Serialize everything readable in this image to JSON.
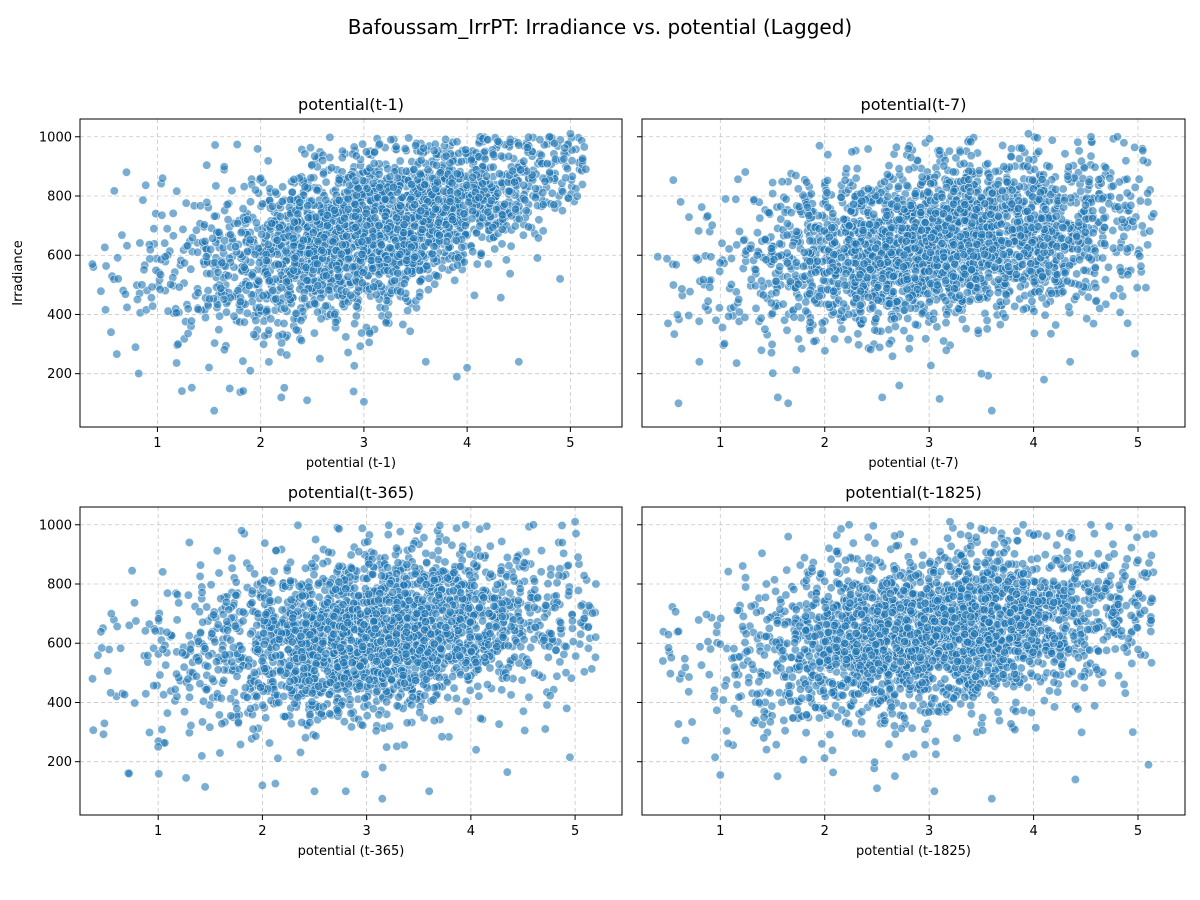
{
  "figure": {
    "suptitle": "Bafoussam_IrrPT: Irradiance vs. potential (Lagged)"
  },
  "colors": {
    "marker_fill": "#1f77b4",
    "marker_edge": "#ffffff",
    "grid": "#b0b0b0",
    "axes": "#000000"
  },
  "chart_data": [
    {
      "type": "scatter",
      "title": "potential(t-1)",
      "xlabel": "potential (t-1)",
      "ylabel": "Irradiance",
      "xlim": [
        0.25,
        5.5
      ],
      "ylim": [
        20,
        1060
      ],
      "xticks": [
        1,
        2,
        3,
        4,
        5
      ],
      "yticks": [
        200,
        400,
        600,
        800,
        1000
      ],
      "grid": true,
      "relationship": "positive",
      "x_range": [
        0.37,
        5.15
      ],
      "y_range": [
        75,
        1010
      ],
      "points": [
        [
          0.37,
          570
        ],
        [
          0.55,
          340
        ],
        [
          0.62,
          520
        ],
        [
          0.7,
          880
        ],
        [
          0.85,
          500
        ],
        [
          1.05,
          860
        ],
        [
          1.2,
          300
        ],
        [
          1.55,
          75
        ],
        [
          1.7,
          150
        ],
        [
          1.9,
          210
        ],
        [
          2.0,
          860
        ],
        [
          2.2,
          120
        ],
        [
          2.45,
          110
        ],
        [
          2.6,
          920
        ],
        [
          2.9,
          140
        ],
        [
          3.0,
          105
        ],
        [
          3.1,
          910
        ],
        [
          3.4,
          960
        ],
        [
          3.6,
          240
        ],
        [
          3.9,
          190
        ],
        [
          4.0,
          220
        ],
        [
          4.2,
          990
        ],
        [
          4.5,
          240
        ],
        [
          4.8,
          1000
        ],
        [
          4.9,
          520
        ],
        [
          5.0,
          1010
        ],
        [
          5.15,
          890
        ]
      ]
    },
    {
      "type": "scatter",
      "title": "potential(t-7)",
      "xlabel": "potential (t-7)",
      "ylabel": "",
      "xlim": [
        0.25,
        5.45
      ],
      "ylim": [
        20,
        1060
      ],
      "xticks": [
        1,
        2,
        3,
        4,
        5
      ],
      "yticks": [
        200,
        400,
        600,
        800,
        1000
      ],
      "grid": true,
      "relationship": "positive",
      "x_range": [
        0.4,
        5.15
      ],
      "y_range": [
        75,
        1010
      ],
      "points": [
        [
          0.4,
          595
        ],
        [
          0.6,
          100
        ],
        [
          0.62,
          780
        ],
        [
          0.8,
          240
        ],
        [
          1.05,
          790
        ],
        [
          1.55,
          120
        ],
        [
          1.65,
          100
        ],
        [
          1.95,
          970
        ],
        [
          2.3,
          860
        ],
        [
          2.55,
          120
        ],
        [
          2.8,
          960
        ],
        [
          3.1,
          115
        ],
        [
          3.5,
          200
        ],
        [
          3.6,
          75
        ],
        [
          3.95,
          1010
        ],
        [
          4.1,
          180
        ],
        [
          4.35,
          240
        ],
        [
          4.55,
          1000
        ],
        [
          4.9,
          370
        ],
        [
          5.05,
          920
        ],
        [
          5.15,
          740
        ]
      ]
    },
    {
      "type": "scatter",
      "title": "potential(t-365)",
      "xlabel": "potential (t-365)",
      "ylabel": "",
      "xlim": [
        0.25,
        5.45
      ],
      "ylim": [
        20,
        1060
      ],
      "xticks": [
        1,
        2,
        3,
        4,
        5
      ],
      "yticks": [
        200,
        400,
        600,
        800,
        1000
      ],
      "grid": true,
      "relationship": "positive",
      "x_range": [
        0.37,
        5.2
      ],
      "y_range": [
        75,
        1010
      ],
      "points": [
        [
          0.37,
          480
        ],
        [
          0.55,
          700
        ],
        [
          0.72,
          160
        ],
        [
          1.0,
          250
        ],
        [
          1.3,
          940
        ],
        [
          1.45,
          115
        ],
        [
          1.8,
          980
        ],
        [
          2.0,
          120
        ],
        [
          2.5,
          100
        ],
        [
          2.8,
          100
        ],
        [
          3.15,
          75
        ],
        [
          3.5,
          995
        ],
        [
          3.6,
          100
        ],
        [
          3.95,
          1000
        ],
        [
          4.05,
          240
        ],
        [
          4.35,
          165
        ],
        [
          4.6,
          1000
        ],
        [
          4.95,
          215
        ],
        [
          5.0,
          1010
        ],
        [
          5.2,
          800
        ]
      ]
    },
    {
      "type": "scatter",
      "title": "potential(t-1825)",
      "xlabel": "potential (t-1825)",
      "ylabel": "",
      "xlim": [
        0.25,
        5.45
      ],
      "ylim": [
        20,
        1060
      ],
      "xticks": [
        1,
        2,
        3,
        4,
        5
      ],
      "yticks": [
        200,
        400,
        600,
        800,
        1000
      ],
      "grid": true,
      "relationship": "positive",
      "x_range": [
        0.45,
        5.15
      ],
      "y_range": [
        75,
        1010
      ],
      "points": [
        [
          0.45,
          540
        ],
        [
          0.6,
          640
        ],
        [
          0.95,
          215
        ],
        [
          1.0,
          155
        ],
        [
          1.65,
          960
        ],
        [
          2.2,
          880
        ],
        [
          2.5,
          110
        ],
        [
          3.05,
          100
        ],
        [
          3.2,
          1010
        ],
        [
          3.6,
          75
        ],
        [
          3.9,
          1000
        ],
        [
          4.4,
          140
        ],
        [
          4.55,
          1000
        ],
        [
          4.95,
          300
        ],
        [
          5.1,
          190
        ],
        [
          5.15,
          970
        ]
      ]
    }
  ]
}
